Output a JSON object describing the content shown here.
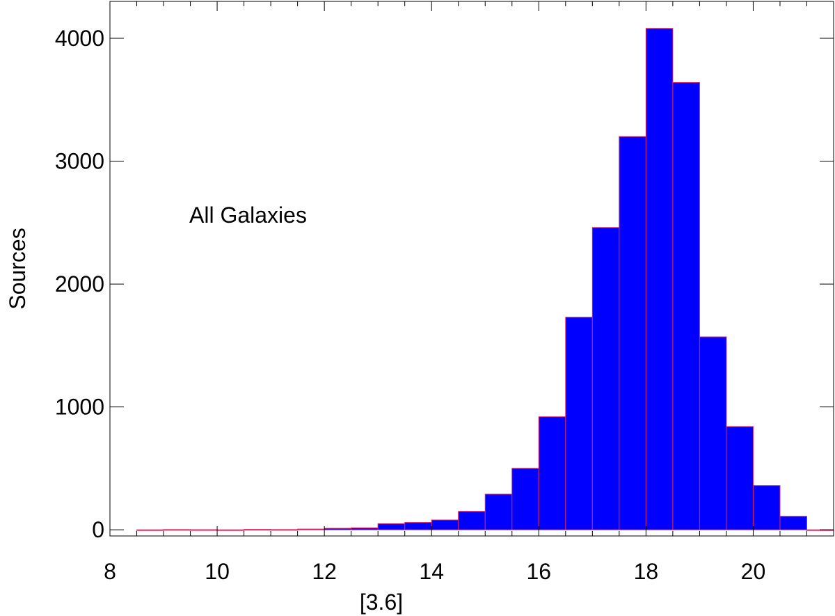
{
  "chart_data": {
    "type": "bar",
    "title": "",
    "xlabel": "[3.6]",
    "ylabel": "Sources",
    "annotation": "All Galaxies",
    "xlim": [
      8,
      21.5
    ],
    "ylim": [
      -50,
      4300
    ],
    "xticks": [
      8,
      10,
      12,
      14,
      16,
      18,
      20
    ],
    "yticks": [
      0,
      1000,
      2000,
      3000,
      4000
    ],
    "bin_width": 0.5,
    "bins": [
      {
        "start": 8.5,
        "value": 0
      },
      {
        "start": 9.0,
        "value": 2
      },
      {
        "start": 9.5,
        "value": 1
      },
      {
        "start": 10.0,
        "value": 0
      },
      {
        "start": 10.5,
        "value": 3
      },
      {
        "start": 11.0,
        "value": 2
      },
      {
        "start": 11.5,
        "value": 6
      },
      {
        "start": 12.0,
        "value": 12
      },
      {
        "start": 12.5,
        "value": 16
      },
      {
        "start": 13.0,
        "value": 50
      },
      {
        "start": 13.5,
        "value": 60
      },
      {
        "start": 14.0,
        "value": 80
      },
      {
        "start": 14.5,
        "value": 150
      },
      {
        "start": 15.0,
        "value": 290
      },
      {
        "start": 15.5,
        "value": 500
      },
      {
        "start": 16.0,
        "value": 920
      },
      {
        "start": 16.5,
        "value": 1730
      },
      {
        "start": 17.0,
        "value": 2460
      },
      {
        "start": 17.5,
        "value": 3200
      },
      {
        "start": 18.0,
        "value": 4080
      },
      {
        "start": 18.5,
        "value": 3640
      },
      {
        "start": 19.0,
        "value": 1570
      },
      {
        "start": 19.5,
        "value": 840
      },
      {
        "start": 20.0,
        "value": 360
      },
      {
        "start": 20.5,
        "value": 110
      },
      {
        "start": 21.0,
        "value": 0
      }
    ],
    "bar_fill": "#0000ff",
    "bar_edge": "#e0245e",
    "grid": false
  }
}
